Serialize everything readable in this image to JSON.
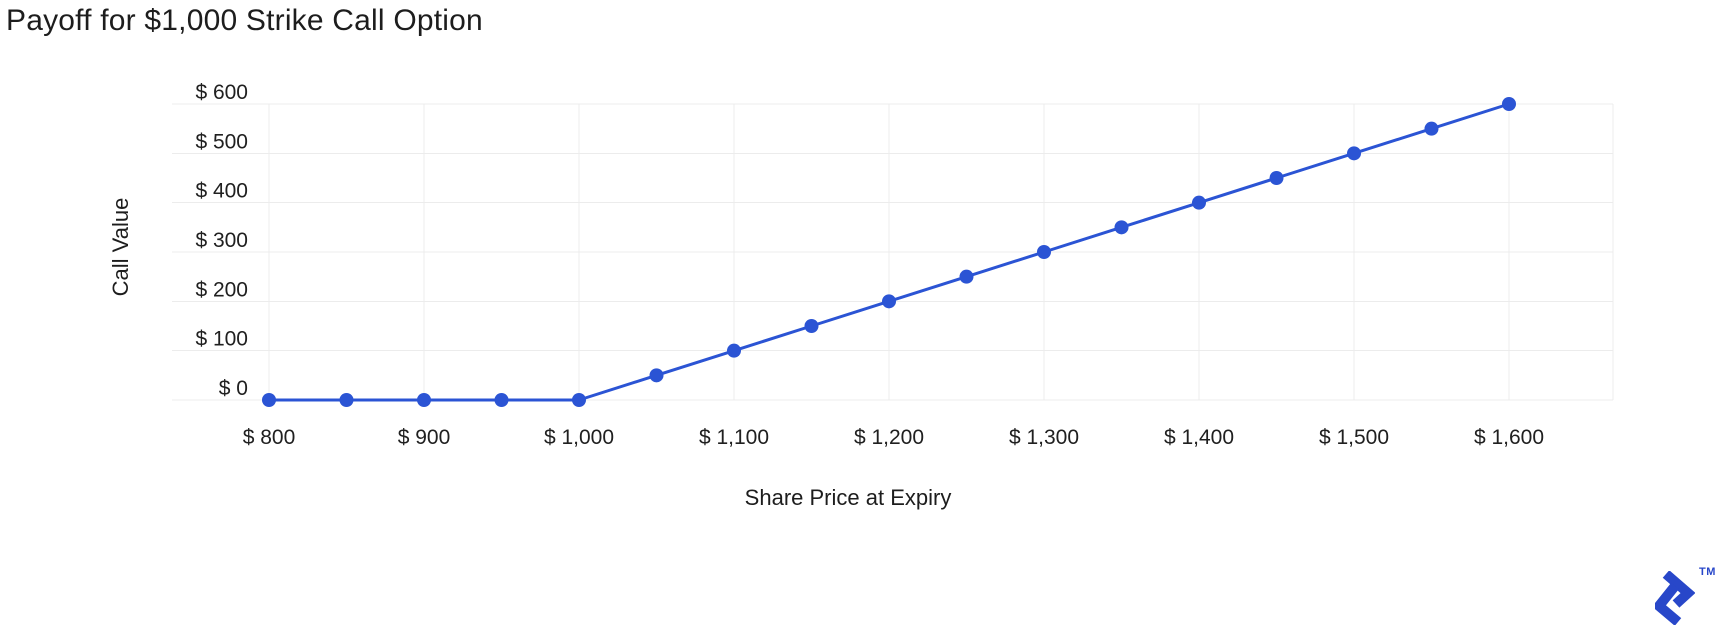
{
  "title": "Payoff for $1,000 Strike Call Option",
  "chart_data": {
    "type": "line",
    "title": "Payoff for $1,000 Strike Call Option",
    "xlabel": "Share Price at Expiry",
    "ylabel": "Call Value",
    "x": [
      800,
      850,
      900,
      950,
      1000,
      1050,
      1100,
      1150,
      1200,
      1250,
      1300,
      1350,
      1400,
      1450,
      1500,
      1550,
      1600
    ],
    "y": [
      0,
      0,
      0,
      0,
      0,
      50,
      100,
      150,
      200,
      250,
      300,
      350,
      400,
      450,
      500,
      550,
      600
    ],
    "x_tick_values": [
      800,
      900,
      1000,
      1100,
      1200,
      1300,
      1400,
      1500,
      1600
    ],
    "x_tick_labels": [
      "$ 800",
      "$ 900",
      "$ 1,000",
      "$ 1,100",
      "$ 1,200",
      "$ 1,300",
      "$ 1,400",
      "$ 1,500",
      "$ 1,600"
    ],
    "y_tick_values": [
      0,
      100,
      200,
      300,
      400,
      500,
      600
    ],
    "y_tick_labels": [
      "$ 0",
      "$ 100",
      "$ 200",
      "$ 300",
      "$ 400",
      "$ 500",
      "$ 600"
    ],
    "xlim": [
      800,
      1600
    ],
    "ylim": [
      0,
      600
    ],
    "grid": true,
    "legend": false,
    "line_color": "#2B54D4",
    "marker": "circle",
    "grid_color": "#ECECEC",
    "tick_text_color": "#202020"
  },
  "logo": {
    "icon": "toptal-logo",
    "trademark": "TM",
    "color": "#2847C9"
  }
}
